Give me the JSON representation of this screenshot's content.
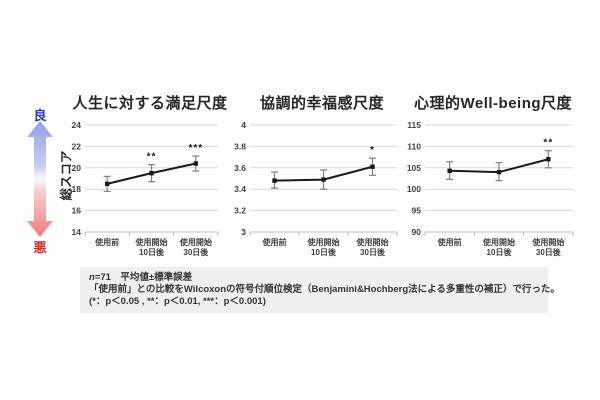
{
  "figure": {
    "axis_indicator": {
      "good_label": "良",
      "bad_label": "悪",
      "y_axis_title": "総スコア"
    },
    "footnote": {
      "n_italic": "n",
      "line1_rest": "=71　平均値±標準誤差",
      "line2": "「使用前」との比較をWilcoxonの符号付順位検定（Benjamini&Hochberg法による多重性の補正）で行った。",
      "line3": "(*：p＜0.05 , **：p＜0.01, ***：p＜0.001)"
    }
  },
  "colors": {
    "text": "#262626",
    "line": "#1a1a1a",
    "error_bar": "#808080",
    "gridline": "#d9d9d9",
    "axis": "#bfbfbf",
    "good": "#2233cc",
    "bad": "#e02222",
    "arrow_blue": "#94a0e8",
    "arrow_red": "#f07878",
    "footnote_bg": "#efefef"
  },
  "chart_data": [
    {
      "type": "line",
      "title": "人生に対する満足尺度",
      "ylabel": "総スコア",
      "categories": [
        "使用前",
        "使用開始\n10日後",
        "使用開始\n30日後"
      ],
      "values": [
        18.5,
        19.5,
        20.4
      ],
      "err_low": [
        17.8,
        18.7,
        19.7
      ],
      "err_high": [
        19.2,
        20.3,
        21.1
      ],
      "significance": [
        "",
        "**",
        "***"
      ],
      "ylim": [
        14,
        24
      ],
      "yticks": [
        24,
        22,
        20,
        18,
        16,
        14
      ],
      "grid": true,
      "legend": "none"
    },
    {
      "type": "line",
      "title": "協調的幸福感尺度",
      "ylabel": "総スコア",
      "categories": [
        "使用前",
        "使用開始\n10日後",
        "使用開始\n30日後"
      ],
      "values": [
        3.48,
        3.49,
        3.61
      ],
      "err_low": [
        3.41,
        3.4,
        3.53
      ],
      "err_high": [
        3.56,
        3.58,
        3.69
      ],
      "significance": [
        "",
        "",
        "*"
      ],
      "ylim": [
        3,
        4
      ],
      "yticks": [
        4,
        3.8,
        3.6,
        3.4,
        3.2,
        3
      ],
      "grid": true,
      "legend": "none"
    },
    {
      "type": "line",
      "title": "心理的Well-being尺度",
      "ylabel": "総スコア",
      "categories": [
        "使用前",
        "使用開始\n10日後",
        "使用開始\n30日後"
      ],
      "values": [
        104.3,
        104.0,
        107.0
      ],
      "err_low": [
        102.3,
        102.0,
        105.0
      ],
      "err_high": [
        106.4,
        106.2,
        109.0
      ],
      "significance": [
        "",
        "",
        "**"
      ],
      "ylim": [
        90,
        115
      ],
      "yticks": [
        115,
        110,
        105,
        100,
        95,
        90
      ],
      "grid": true,
      "legend": "none"
    }
  ]
}
